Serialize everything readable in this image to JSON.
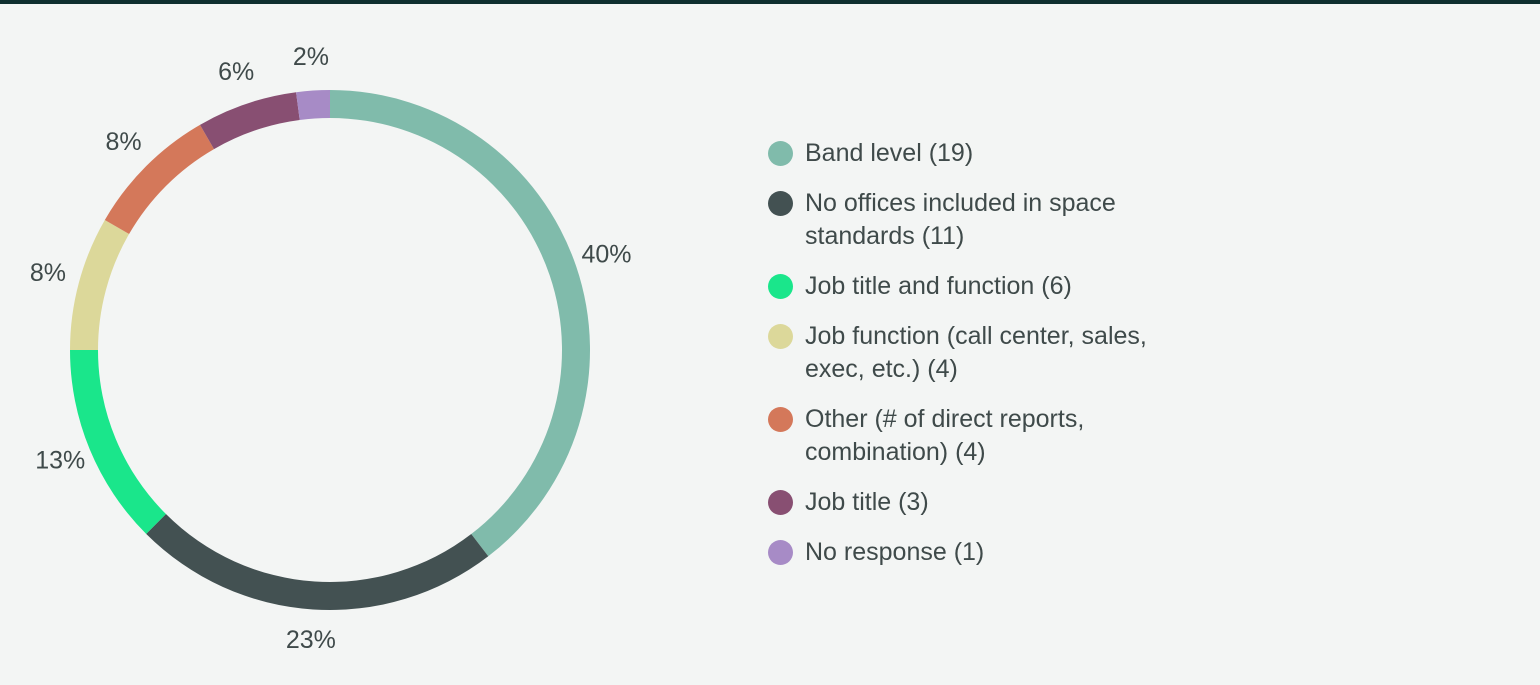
{
  "theme": {
    "background": "#f3f5f4",
    "top_border": "#0f2f2f",
    "text": "#3f4a4a"
  },
  "chart_data": {
    "type": "pie",
    "variant": "donut",
    "title": "",
    "slices": [
      {
        "label": "Band level (19)",
        "value": 19,
        "percent_label": "40%",
        "color": "#80bbab"
      },
      {
        "label": "No offices included in space standards (11)",
        "value": 11,
        "percent_label": "23%",
        "color": "#435152"
      },
      {
        "label": "Job title and function (6)",
        "value": 6,
        "percent_label": "13%",
        "color": "#1ae68b"
      },
      {
        "label": "Job function (call center, sales, exec, etc.) (4)",
        "value": 4,
        "percent_label": "8%",
        "color": "#dcd89a"
      },
      {
        "label": "Other (# of direct reports, combination) (4)",
        "value": 4,
        "percent_label": "8%",
        "color": "#d4785a"
      },
      {
        "label": "Job title (3)",
        "value": 3,
        "percent_label": "6%",
        "color": "#884f72"
      },
      {
        "label": "No response (1)",
        "value": 1,
        "percent_label": "2%",
        "color": "#a78bc6"
      }
    ],
    "legend_position": "right"
  }
}
